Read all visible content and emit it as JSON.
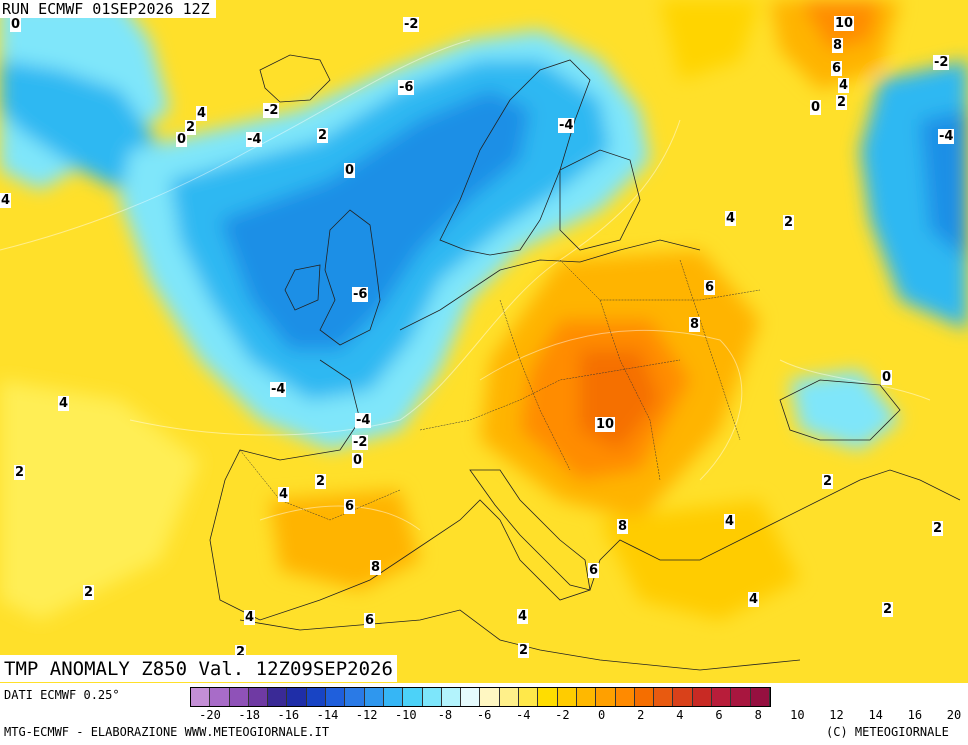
{
  "run_label": "RUN ECMWF 01SEP2026 12Z",
  "title": "TMP ANOMALY Z850 Val. 12Z09SEP2026",
  "footer": {
    "source": "DATI ECMWF 0.25°",
    "credit": "MTG-ECMWF - ELABORAZIONE WWW.METEOGIORNALE.IT",
    "copyright": "(C) METEOGIORNALE"
  },
  "colorbar": {
    "colors": [
      "#c48fd6",
      "#a86cc8",
      "#8f52b8",
      "#6f3aa3",
      "#3a2a96",
      "#1f2ea8",
      "#1844c4",
      "#1f5fdc",
      "#2a7ae6",
      "#2f97ee",
      "#36b6f5",
      "#4cd2f8",
      "#7de6fb",
      "#b3f3fc",
      "#e6fbfd",
      "#fff7c2",
      "#fff08a",
      "#ffe84a",
      "#ffdd00",
      "#ffcc00",
      "#ffb800",
      "#ffa000",
      "#ff8a00",
      "#f56e00",
      "#e85a10",
      "#d9411a",
      "#c82a24",
      "#b81d3a",
      "#a8163f",
      "#961040"
    ],
    "tick_labels": [
      "-20",
      "-18",
      "-16",
      "-14",
      "-12",
      "-10",
      "-8",
      "-6",
      "-4",
      "-2",
      "0",
      "2",
      "4",
      "6",
      "8",
      "10",
      "12",
      "14",
      "16",
      "20"
    ]
  },
  "isolines": [
    {
      "v": "0",
      "name": "iso-label-0-nw"
    },
    {
      "v": "-2",
      "name": "iso-label-m2-norway-sea"
    },
    {
      "v": "10",
      "name": "iso-label-10-russia"
    },
    {
      "v": "8",
      "name": "iso-label-8-russia"
    },
    {
      "v": "6",
      "name": "iso-label-6-russia"
    },
    {
      "v": "4",
      "name": "iso-label-4-russia"
    },
    {
      "v": "2",
      "name": "iso-label-2-russia"
    },
    {
      "v": "0",
      "name": "iso-label-0-russia"
    },
    {
      "v": "-2",
      "name": "iso-label-m2-ne"
    },
    {
      "v": "-6",
      "name": "iso-label-m6-norway"
    },
    {
      "v": "-4",
      "name": "iso-label-m4-sweden"
    },
    {
      "v": "-4",
      "name": "iso-label-m4-east"
    },
    {
      "v": "4",
      "name": "iso-label-4-iceland-w"
    },
    {
      "v": "2",
      "name": "iso-label-2-iceland-w"
    },
    {
      "v": "0",
      "name": "iso-label-0-iceland-w"
    },
    {
      "v": "-2",
      "name": "iso-label-m2-iceland"
    },
    {
      "v": "-4",
      "name": "iso-label-m4-iceland"
    },
    {
      "v": "2",
      "name": "iso-label-2-iceland-s"
    },
    {
      "v": "0",
      "name": "iso-label-0-faroe"
    },
    {
      "v": "4",
      "name": "iso-label-4-west-edge"
    },
    {
      "v": "4",
      "name": "iso-label-4-baltic"
    },
    {
      "v": "2",
      "name": "iso-label-2-belarus"
    },
    {
      "v": "6",
      "name": "iso-label-6-poland"
    },
    {
      "v": "8",
      "name": "iso-label-8-ukraine"
    },
    {
      "v": "-6",
      "name": "iso-label-m6-england"
    },
    {
      "v": "0",
      "name": "iso-label-0-blacksea"
    },
    {
      "v": "-4",
      "name": "iso-label-m4-biscay"
    },
    {
      "v": "-4",
      "name": "iso-label-m4-bay"
    },
    {
      "v": "-2",
      "name": "iso-label-m2-bay"
    },
    {
      "v": "0",
      "name": "iso-label-0-bay"
    },
    {
      "v": "4",
      "name": "iso-label-4-atlantic"
    },
    {
      "v": "10",
      "name": "iso-label-10-hungary"
    },
    {
      "v": "2",
      "name": "iso-label-2-atlantic-s"
    },
    {
      "v": "2",
      "name": "iso-label-2-spain-n"
    },
    {
      "v": "4",
      "name": "iso-label-4-spain-nw"
    },
    {
      "v": "6",
      "name": "iso-label-6-spain"
    },
    {
      "v": "8",
      "name": "iso-label-8-spain"
    },
    {
      "v": "2",
      "name": "iso-label-2-turkey"
    },
    {
      "v": "8",
      "name": "iso-label-8-balkans"
    },
    {
      "v": "4",
      "name": "iso-label-4-aegean"
    },
    {
      "v": "2",
      "name": "iso-label-2-east"
    },
    {
      "v": "6",
      "name": "iso-label-6-italy"
    },
    {
      "v": "2",
      "name": "iso-label-2-portugal"
    },
    {
      "v": "4",
      "name": "iso-label-4-morocco"
    },
    {
      "v": "6",
      "name": "iso-label-6-algeria"
    },
    {
      "v": "4",
      "name": "iso-label-4-tunisia"
    },
    {
      "v": "4",
      "name": "iso-label-4-crete"
    },
    {
      "v": "2",
      "name": "iso-label-2-cyprus"
    },
    {
      "v": "2",
      "name": "iso-label-2-libya"
    },
    {
      "v": "2",
      "name": "iso-label-2-sw"
    }
  ]
}
